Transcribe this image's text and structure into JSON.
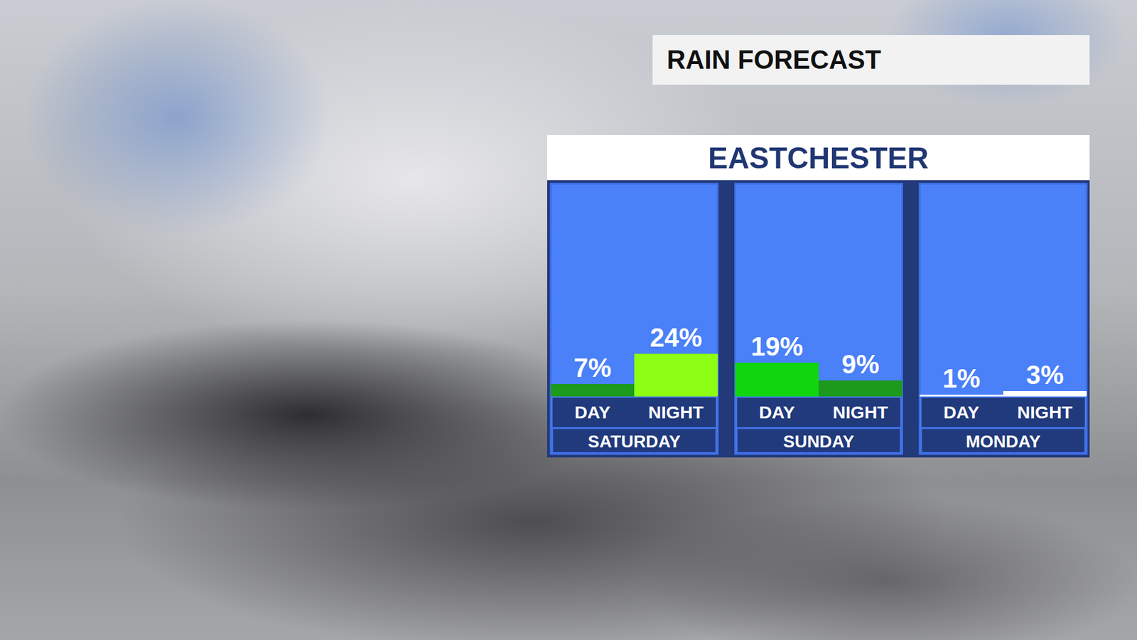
{
  "chart_data": {
    "type": "bar",
    "subtitle": "RAIN FORECAST",
    "title": "EASTCHESTER",
    "categories": [
      "SATURDAY",
      "SUNDAY",
      "MONDAY"
    ],
    "series": [
      {
        "name": "DAY",
        "values": [
          7,
          19,
          1
        ],
        "value_labels": [
          "7%",
          "19%",
          "1%"
        ],
        "colors": [
          "#1b9a1b",
          "#10d610",
          "#ffffff"
        ]
      },
      {
        "name": "NIGHT",
        "values": [
          24,
          9,
          3
        ],
        "value_labels": [
          "24%",
          "9%",
          "3%"
        ],
        "colors": [
          "#8cff14",
          "#1b9a1b",
          "#ffffff"
        ]
      }
    ],
    "ylim": [
      0,
      100
    ],
    "data_labels": true,
    "tick_labels": false,
    "grid": false
  }
}
